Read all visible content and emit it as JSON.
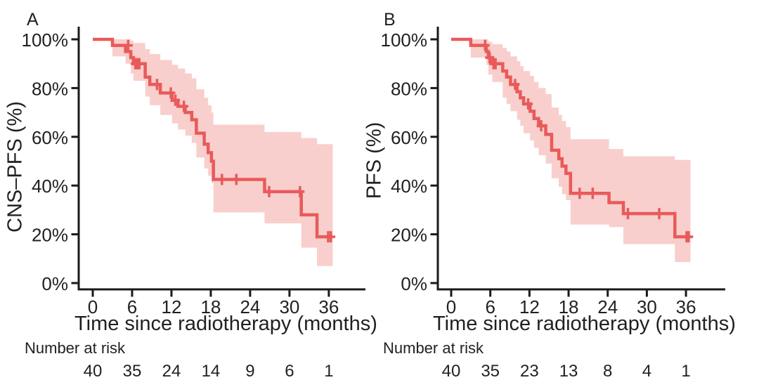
{
  "colors": {
    "curve": "#e95a5b",
    "confidence_band": "#f8cfcc",
    "axis": "#1a1a1a",
    "text": "#231f20",
    "background": "#ffffff"
  },
  "chart_data": [
    {
      "type": "line",
      "variant": "kaplan-meier-step",
      "panel_label": "A",
      "xlabel": "Time since radiotherapy (months)",
      "ylabel": "CNS–PFS (%)",
      "x_ticks": [
        0,
        6,
        12,
        18,
        24,
        30,
        36
      ],
      "y_ticks": [
        0,
        20,
        40,
        60,
        80,
        100
      ],
      "y_tick_suffix": "%",
      "xlim": [
        0,
        41
      ],
      "ylim": [
        0,
        100
      ],
      "grid": false,
      "legend": null,
      "series": [
        {
          "name": "CNS-PFS",
          "steps": [
            [
              0,
              100
            ],
            [
              3,
              97.5
            ],
            [
              5,
              95
            ],
            [
              5.8,
              92.5
            ],
            [
              6.2,
              90
            ],
            [
              8,
              84.5
            ],
            [
              8.7,
              81.5
            ],
            [
              10.3,
              78
            ],
            [
              12.1,
              75
            ],
            [
              13,
              72.5
            ],
            [
              14.1,
              70
            ],
            [
              15.1,
              67
            ],
            [
              15.8,
              61.5
            ],
            [
              17,
              57
            ],
            [
              17.6,
              53.5
            ],
            [
              18.1,
              50
            ],
            [
              18.4,
              42.5
            ],
            [
              26.2,
              37.5
            ],
            [
              31.8,
              28
            ],
            [
              34.2,
              19
            ]
          ],
          "end_time": 36.6,
          "censor_marks": [
            [
              5.4,
              97.5
            ],
            [
              6.5,
              90
            ],
            [
              6.8,
              90
            ],
            [
              7.1,
              90
            ],
            [
              9.8,
              81.5
            ],
            [
              11.9,
              78
            ],
            [
              12.6,
              75
            ],
            [
              13.9,
              72.5
            ],
            [
              19.7,
              42.5
            ],
            [
              21.9,
              42.5
            ],
            [
              26.9,
              37.5
            ],
            [
              31.6,
              37.5
            ],
            [
              35.9,
              19
            ],
            [
              36.3,
              19
            ]
          ],
          "ci": [
            [
              3,
              100,
              93
            ],
            [
              5,
              100,
              90
            ],
            [
              5.8,
              99.5,
              86
            ],
            [
              6.2,
              98.5,
              83
            ],
            [
              8,
              96,
              76.5
            ],
            [
              8.7,
              94,
              73
            ],
            [
              10.3,
              91.5,
              69
            ],
            [
              12.1,
              89.5,
              65.5
            ],
            [
              13,
              88,
              63
            ],
            [
              14.1,
              86,
              60.5
            ],
            [
              15.1,
              84,
              57.5
            ],
            [
              15.8,
              79.5,
              51.5
            ],
            [
              17,
              76,
              47
            ],
            [
              17.6,
              73,
              44
            ],
            [
              18.1,
              70,
              41
            ],
            [
              18.4,
              65,
              29
            ],
            [
              26.2,
              62,
              24.5
            ],
            [
              31.8,
              59.5,
              14.5
            ],
            [
              34.2,
              57,
              7
            ]
          ]
        }
      ],
      "number_at_risk": {
        "label": "Number at risk",
        "times": [
          0,
          6,
          12,
          18,
          24,
          30,
          36
        ],
        "counts": [
          40,
          35,
          24,
          14,
          9,
          6,
          1
        ]
      }
    },
    {
      "type": "line",
      "variant": "kaplan-meier-step",
      "panel_label": "B",
      "xlabel": "Time since radiotherapy (months)",
      "ylabel": "PFS (%)",
      "x_ticks": [
        0,
        6,
        12,
        18,
        24,
        30,
        36
      ],
      "y_ticks": [
        0,
        20,
        40,
        60,
        80,
        100
      ],
      "y_tick_suffix": "%",
      "xlim": [
        0,
        41
      ],
      "ylim": [
        0,
        100
      ],
      "grid": false,
      "legend": null,
      "series": [
        {
          "name": "PFS",
          "steps": [
            [
              0,
              100
            ],
            [
              3,
              97.5
            ],
            [
              5.4,
              95
            ],
            [
              5.7,
              92.5
            ],
            [
              6.3,
              90
            ],
            [
              7.9,
              87
            ],
            [
              8.5,
              84.5
            ],
            [
              9.1,
              81.5
            ],
            [
              10.1,
              78.5
            ],
            [
              10.6,
              76
            ],
            [
              11.1,
              73.5
            ],
            [
              12.1,
              70.5
            ],
            [
              12.7,
              67.5
            ],
            [
              13.4,
              64.5
            ],
            [
              14.5,
              61
            ],
            [
              15.4,
              54.5
            ],
            [
              16.5,
              51
            ],
            [
              17,
              48
            ],
            [
              17.6,
              45
            ],
            [
              18.3,
              36.8
            ],
            [
              24.2,
              33
            ],
            [
              26.4,
              28.5
            ],
            [
              34.3,
              19
            ]
          ],
          "end_time": 36.7,
          "censor_marks": [
            [
              5.2,
              97.5
            ],
            [
              5.9,
              92.5
            ],
            [
              6.5,
              90
            ],
            [
              6.8,
              90
            ],
            [
              9.8,
              81.5
            ],
            [
              11.8,
              73.5
            ],
            [
              13.8,
              64.5
            ],
            [
              19.7,
              36.8
            ],
            [
              21.7,
              36.8
            ],
            [
              27.1,
              28.5
            ],
            [
              31.9,
              28.5
            ],
            [
              36.1,
              19
            ],
            [
              36.4,
              19
            ]
          ],
          "ci": [
            [
              3,
              100,
              92.5
            ],
            [
              5.4,
              100,
              89.5
            ],
            [
              5.7,
              99,
              85.5
            ],
            [
              6.3,
              98,
              82.5
            ],
            [
              7.9,
              96.5,
              76
            ],
            [
              8.5,
              95,
              73.5
            ],
            [
              9.1,
              93,
              70.5
            ],
            [
              10.1,
              91,
              67
            ],
            [
              10.6,
              89,
              64.5
            ],
            [
              11.1,
              87,
              61.5
            ],
            [
              12.1,
              85,
              58.5
            ],
            [
              12.7,
              82.5,
              55.5
            ],
            [
              13.4,
              80,
              52.5
            ],
            [
              14.5,
              77.5,
              49
            ],
            [
              15.4,
              72,
              43
            ],
            [
              16.5,
              69,
              39.5
            ],
            [
              17,
              66.5,
              36.5
            ],
            [
              17.6,
              64,
              34
            ],
            [
              18.3,
              59,
              24
            ],
            [
              24.2,
              55,
              23
            ],
            [
              26.4,
              52,
              16
            ],
            [
              34.3,
              50.5,
              8.6
            ]
          ]
        }
      ],
      "number_at_risk": {
        "label": "Number at risk",
        "times": [
          0,
          6,
          12,
          18,
          24,
          30,
          36
        ],
        "counts": [
          40,
          35,
          23,
          13,
          8,
          4,
          1
        ]
      }
    }
  ]
}
